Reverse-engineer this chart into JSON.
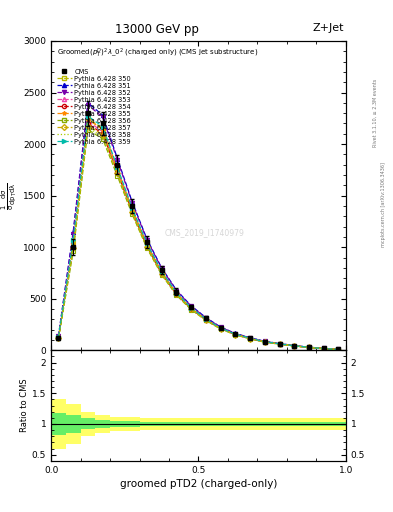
{
  "title_top": "13000 GeV pp",
  "title_right": "Z+Jet",
  "plot_title": "Groomed$(p_T^D)^2\\lambda\\_0^2$ (charged only) (CMS jet substructure)",
  "xlabel": "groomed pTD2 (charged-only)",
  "ylabel_main": "$\\mathrm{\\frac{1}{\\sigma}\\frac{d\\sigma}{dp_T d\\lambda}}$",
  "ylabel_ratio": "Ratio to CMS",
  "rivet_label": "Rivet 3.1.10, ≥ 2.3M events",
  "mcplots_label": "mcplots.cern.ch [arXiv:1306.3436]",
  "watermark": "CMS_2019_I1740979",
  "xlim": [
    0,
    1
  ],
  "main_ylim": [
    0,
    3000
  ],
  "ratio_ylim": [
    0.4,
    2.2
  ],
  "x_data": [
    0.025,
    0.075,
    0.125,
    0.175,
    0.225,
    0.275,
    0.325,
    0.375,
    0.425,
    0.475,
    0.525,
    0.575,
    0.625,
    0.675,
    0.725,
    0.775,
    0.825,
    0.875,
    0.925,
    0.975
  ],
  "cms_y": [
    120,
    1000,
    2300,
    2200,
    1800,
    1400,
    1050,
    780,
    570,
    420,
    310,
    220,
    160,
    120,
    85,
    65,
    45,
    30,
    18,
    8
  ],
  "cms_errors": [
    20,
    80,
    120,
    110,
    90,
    70,
    55,
    40,
    30,
    22,
    18,
    14,
    12,
    10,
    8,
    7,
    5,
    4,
    3,
    2
  ],
  "series": [
    {
      "label": "Pythia 6.428 350",
      "color": "#b8b800",
      "linestyle": "--",
      "marker": "s",
      "markerfill": "none",
      "y": [
        130,
        1050,
        2250,
        2150,
        1760,
        1370,
        1030,
        760,
        555,
        410,
        302,
        215,
        156,
        117,
        82,
        63,
        44,
        29,
        17,
        8
      ]
    },
    {
      "label": "Pythia 6.428 351",
      "color": "#0000cc",
      "linestyle": "--",
      "marker": "^",
      "markerfill": "full",
      "y": [
        140,
        1150,
        2400,
        2280,
        1860,
        1440,
        1080,
        800,
        585,
        432,
        318,
        226,
        164,
        123,
        87,
        66,
        46,
        31,
        18,
        9
      ]
    },
    {
      "label": "Pythia 6.428 352",
      "color": "#7700aa",
      "linestyle": "--",
      "marker": "v",
      "markerfill": "full",
      "y": [
        138,
        1130,
        2380,
        2260,
        1845,
        1430,
        1072,
        794,
        580,
        428,
        315,
        224,
        162,
        121,
        86,
        65,
        45,
        30,
        18,
        8
      ]
    },
    {
      "label": "Pythia 6.428 353",
      "color": "#ee44aa",
      "linestyle": "--",
      "marker": "^",
      "markerfill": "none",
      "y": [
        125,
        1020,
        2220,
        2120,
        1740,
        1355,
        1018,
        752,
        549,
        405,
        298,
        212,
        154,
        115,
        81,
        62,
        43,
        28,
        17,
        8
      ]
    },
    {
      "label": "Pythia 6.428 354",
      "color": "#cc0000",
      "linestyle": "--",
      "marker": "o",
      "markerfill": "none",
      "y": [
        122,
        1005,
        2200,
        2100,
        1725,
        1345,
        1010,
        746,
        545,
        402,
        295,
        210,
        152,
        114,
        80,
        61,
        43,
        28,
        16,
        7
      ]
    },
    {
      "label": "Pythia 6.428 355",
      "color": "#ff8800",
      "linestyle": "--",
      "marker": "*",
      "markerfill": "full",
      "y": [
        127,
        1030,
        2240,
        2140,
        1755,
        1365,
        1025,
        758,
        554,
        408,
        300,
        214,
        155,
        116,
        82,
        62,
        43,
        29,
        17,
        8
      ]
    },
    {
      "label": "Pythia 6.428 356",
      "color": "#88aa00",
      "linestyle": "--",
      "marker": "s",
      "markerfill": "none",
      "y": [
        115,
        960,
        2140,
        2050,
        1690,
        1320,
        992,
        733,
        535,
        395,
        290,
        207,
        150,
        112,
        79,
        60,
        42,
        27,
        16,
        7
      ]
    },
    {
      "label": "Pythia 6.428 357",
      "color": "#ccaa00",
      "linestyle": "--",
      "marker": "D",
      "markerfill": "none",
      "y": [
        120,
        990,
        2180,
        2090,
        1715,
        1338,
        1005,
        743,
        543,
        400,
        294,
        210,
        152,
        114,
        80,
        61,
        43,
        28,
        16,
        7
      ]
    },
    {
      "label": "Pythia 6.428 358",
      "color": "#aacc00",
      "linestyle": ":",
      "marker": "none",
      "markerfill": "none",
      "y": [
        118,
        975,
        2160,
        2070,
        1700,
        1328,
        998,
        738,
        539,
        398,
        292,
        208,
        151,
        113,
        79,
        60,
        42,
        28,
        16,
        7
      ]
    },
    {
      "label": "Pythia 6.428 359",
      "color": "#00bbaa",
      "linestyle": "--",
      "marker": ">",
      "markerfill": "full",
      "y": [
        132,
        1070,
        2270,
        2170,
        1775,
        1380,
        1038,
        768,
        560,
        413,
        304,
        216,
        157,
        118,
        83,
        63,
        44,
        29,
        17,
        8
      ]
    }
  ],
  "ratio_x": [
    0.0,
    0.05,
    0.1,
    0.15,
    0.2,
    0.3,
    0.4,
    0.5,
    0.6,
    0.7,
    0.8,
    0.9,
    1.0
  ],
  "green_inner": [
    0.18,
    0.14,
    0.09,
    0.06,
    0.05,
    0.04,
    0.04,
    0.04,
    0.04,
    0.04,
    0.04,
    0.04,
    0.04
  ],
  "yellow_inner": [
    0.4,
    0.32,
    0.2,
    0.15,
    0.12,
    0.1,
    0.1,
    0.1,
    0.1,
    0.1,
    0.1,
    0.1,
    0.1
  ]
}
